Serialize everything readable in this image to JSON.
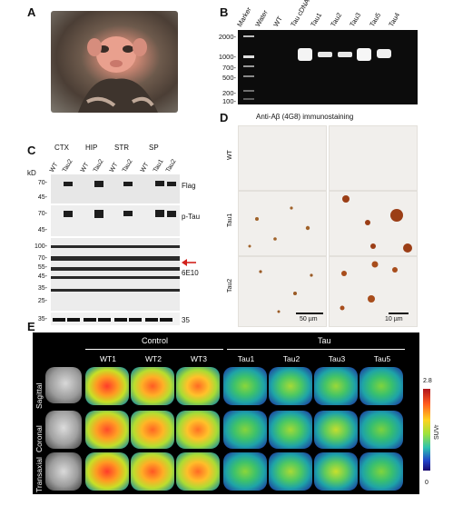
{
  "panels": {
    "A": {
      "label": "A"
    },
    "B": {
      "label": "B",
      "lanes": [
        "Marker",
        "Water",
        "WT",
        "Tau cDNA",
        "Tau1",
        "Tau2",
        "Tau3",
        "Tau5",
        "Tau4"
      ],
      "markers": [
        "2000-",
        "1000-",
        "700-",
        "500-",
        "200-",
        "100-"
      ]
    },
    "C": {
      "label": "C",
      "regions": [
        "CTX",
        "HIP",
        "STR",
        "SP"
      ],
      "lanes": [
        "WT",
        "Tau2",
        "WT",
        "Tau2",
        "WT",
        "Tau2",
        "WT",
        "Tau1",
        "Tau2"
      ],
      "kd_label": "kD",
      "kd_top": [
        "70-",
        "45-"
      ],
      "kd_mid": [
        "70-",
        "45-"
      ],
      "kd_bottom": [
        "100-",
        "70-",
        "55-",
        "45-",
        "35-",
        "25-"
      ],
      "kd_loading": "35-",
      "bands": [
        "Flag",
        "p-Tau",
        "6E10"
      ],
      "loading_band": "35",
      "arrow_color": "#d2211c"
    },
    "D": {
      "label": "D",
      "title": "Anti-Aβ (4G8) immunostaining",
      "rows": [
        "WT",
        "Tau1",
        "Tau2"
      ],
      "scale_left": "50 µm",
      "scale_right": "10 µm"
    },
    "E": {
      "label": "E",
      "group_control": "Control",
      "group_tau": "Tau",
      "columns": [
        "WT1",
        "WT2",
        "WT3",
        "Tau1",
        "Tau2",
        "Tau3",
        "Tau5"
      ],
      "rows": [
        "Sagittal",
        "Coronal",
        "Transaxial"
      ],
      "colorbar_label": "SUVr",
      "colorbar_max": "2.8",
      "colorbar_min": "0"
    }
  }
}
